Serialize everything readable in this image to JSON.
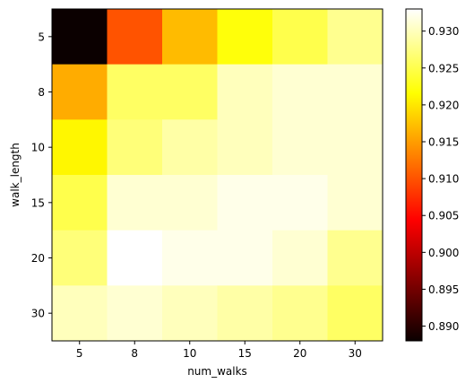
{
  "chart_data": {
    "type": "heatmap",
    "title": "",
    "xlabel": "num_walks",
    "ylabel": "walk_length",
    "x_categories": [
      "5",
      "8",
      "10",
      "15",
      "20",
      "30"
    ],
    "y_categories": [
      "5",
      "8",
      "10",
      "15",
      "20",
      "30"
    ],
    "values": [
      [
        0.888,
        0.91,
        0.917,
        0.922,
        0.925,
        0.928
      ],
      [
        0.916,
        0.926,
        0.926,
        0.93,
        0.931,
        0.931
      ],
      [
        0.921,
        0.927,
        0.929,
        0.93,
        0.931,
        0.931
      ],
      [
        0.925,
        0.931,
        0.931,
        0.932,
        0.932,
        0.931
      ],
      [
        0.927,
        0.933,
        0.932,
        0.932,
        0.931,
        0.928
      ],
      [
        0.93,
        0.931,
        0.93,
        0.929,
        0.928,
        0.926
      ]
    ],
    "colormap": "hot",
    "colorbar": {
      "vmin": 0.888,
      "vmax": 0.933,
      "ticks": [
        "0.890",
        "0.895",
        "0.900",
        "0.905",
        "0.910",
        "0.915",
        "0.920",
        "0.925",
        "0.930"
      ]
    },
    "grid": false
  }
}
